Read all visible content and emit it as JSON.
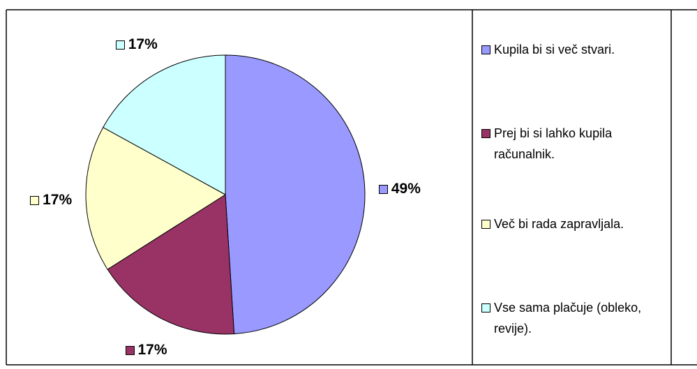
{
  "chart_data": {
    "type": "pie",
    "categories": [
      "Kupila bi si več stvari.",
      "Prej bi si lahko kupila računalnik.",
      "Več bi rada zapravljala.",
      "Vse sama plačuje (obleko, revije)."
    ],
    "values": [
      49,
      17,
      17,
      17
    ],
    "value_labels": [
      "49%",
      "17%",
      "17%",
      "17%"
    ],
    "colors": [
      "#9999ff",
      "#993366",
      "#ffffcc",
      "#ccffff"
    ],
    "legend": "right"
  }
}
